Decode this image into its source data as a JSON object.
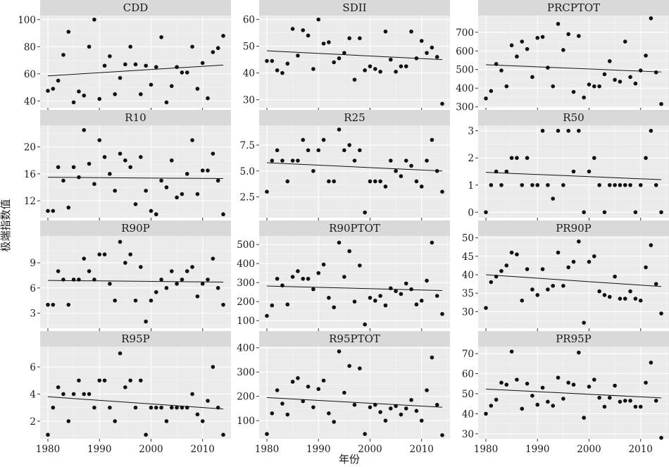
{
  "axis_labels": {
    "x": "年份",
    "y": "极端指数值"
  },
  "chart_data": [
    {
      "type": "scatter",
      "title": "CDD",
      "xlim": [
        1978.5,
        2015.5
      ],
      "ylim": [
        35,
        103
      ],
      "yticks": [
        40,
        60,
        80,
        100
      ],
      "xticks": [
        1980,
        1990,
        2000,
        2010
      ],
      "x": [
        1980,
        1981,
        1982,
        1983,
        1984,
        1985,
        1986,
        1987,
        1988,
        1989,
        1990,
        1991,
        1992,
        1993,
        1994,
        1995,
        1996,
        1997,
        1998,
        1999,
        2000,
        2001,
        2002,
        2003,
        2004,
        2005,
        2006,
        2007,
        2008,
        2009,
        2010,
        2011,
        2012,
        2013,
        2014
      ],
      "y": [
        47.5,
        49,
        55,
        74,
        91,
        39,
        47,
        44,
        80,
        100,
        41.5,
        66,
        73,
        45,
        57,
        67,
        80,
        67,
        45,
        66,
        52,
        65,
        87,
        39,
        51,
        65,
        61,
        61,
        80,
        49,
        68,
        42,
        76,
        79,
        88
      ],
      "trend": [
        58.5,
        66.5
      ]
    },
    {
      "type": "scatter",
      "title": "SDII",
      "xlim": [
        1978.5,
        2015.5
      ],
      "ylim": [
        27,
        61.5
      ],
      "yticks": [
        30,
        40,
        50,
        60
      ],
      "xticks": [
        1980,
        1990,
        2000,
        2010
      ],
      "x": [
        1980,
        1981,
        1982,
        1983,
        1984,
        1985,
        1986,
        1987,
        1988,
        1989,
        1990,
        1991,
        1992,
        1993,
        1994,
        1995,
        1996,
        1997,
        1998,
        1999,
        2000,
        2001,
        2002,
        2003,
        2004,
        2005,
        2006,
        2007,
        2008,
        2009,
        2010,
        2011,
        2012,
        2013,
        2014
      ],
      "y": [
        44.5,
        44.5,
        41,
        40,
        43.5,
        56.5,
        46.5,
        56,
        54,
        41.5,
        60,
        51,
        51.5,
        44,
        45.5,
        47.5,
        53,
        37.5,
        53,
        41,
        42.5,
        41.5,
        40.5,
        55.5,
        45,
        40.5,
        42.5,
        42.5,
        55.5,
        45.5,
        52,
        47.5,
        49.5,
        46,
        28.5
      ],
      "trend": [
        48.3,
        45.0
      ]
    },
    {
      "type": "scatter",
      "title": "PRCPTOT",
      "xlim": [
        1978.5,
        2015.5
      ],
      "ylim": [
        295,
        790
      ],
      "yticks": [
        300,
        400,
        500,
        600,
        700
      ],
      "xticks": [
        1980,
        1990,
        2000,
        2010
      ],
      "x": [
        1980,
        1981,
        1982,
        1983,
        1984,
        1985,
        1986,
        1987,
        1988,
        1989,
        1990,
        1991,
        1992,
        1993,
        1994,
        1995,
        1996,
        1997,
        1998,
        1999,
        2000,
        2001,
        2002,
        2003,
        2004,
        2005,
        2006,
        2007,
        2008,
        2009,
        2010,
        2011,
        2012,
        2013,
        2014
      ],
      "y": [
        345,
        385,
        530,
        495,
        410,
        630,
        570,
        650,
        610,
        460,
        670,
        675,
        510,
        410,
        745,
        605,
        690,
        380,
        680,
        350,
        420,
        410,
        410,
        475,
        545,
        445,
        435,
        650,
        460,
        425,
        495,
        575,
        775,
        485,
        315
      ],
      "trend": [
        526,
        487
      ]
    },
    {
      "type": "scatter",
      "title": "R10",
      "xlim": [
        1978.5,
        2015.5
      ],
      "ylim": [
        9.5,
        23.2
      ],
      "yticks": [
        12,
        16,
        20
      ],
      "xticks": [
        1980,
        1990,
        2000,
        2010
      ],
      "x": [
        1980,
        1981,
        1982,
        1983,
        1984,
        1985,
        1986,
        1987,
        1988,
        1989,
        1990,
        1991,
        1992,
        1993,
        1994,
        1995,
        1996,
        1997,
        1998,
        1999,
        2000,
        2001,
        2002,
        2003,
        2004,
        2005,
        2006,
        2007,
        2008,
        2009,
        2010,
        2011,
        2012,
        2013,
        2014
      ],
      "y": [
        10.5,
        10.5,
        17,
        15,
        11,
        17,
        15.5,
        22.5,
        17.5,
        14.5,
        21,
        18.5,
        16,
        13.5,
        19,
        18,
        17,
        11.5,
        18.5,
        13.5,
        10.5,
        10,
        15,
        14,
        18,
        12.5,
        13,
        16,
        21,
        13,
        16.5,
        16.5,
        19,
        15,
        10
      ],
      "trend": [
        15.5,
        15.3
      ]
    },
    {
      "type": "scatter",
      "title": "R25",
      "xlim": [
        1978.5,
        2015.5
      ],
      "ylim": [
        0.5,
        9.4
      ],
      "yticks": [
        2.5,
        5.0,
        7.5
      ],
      "ytickLabels": [
        "2.5",
        "5.0",
        "7.5"
      ],
      "xticks": [
        1980,
        1990,
        2000,
        2010
      ],
      "x": [
        1980,
        1981,
        1982,
        1983,
        1984,
        1985,
        1986,
        1987,
        1988,
        1989,
        1990,
        1991,
        1992,
        1993,
        1994,
        1995,
        1996,
        1997,
        1998,
        1999,
        2000,
        2001,
        2002,
        2003,
        2004,
        2005,
        2006,
        2007,
        2008,
        2009,
        2010,
        2011,
        2012,
        2013,
        2014
      ],
      "y": [
        3,
        6,
        7,
        6,
        4,
        6,
        6,
        8,
        7,
        5,
        7,
        8,
        4,
        4,
        9,
        7,
        7.5,
        6,
        7,
        1,
        4,
        4,
        4,
        3.5,
        6,
        5,
        4.5,
        6,
        5.5,
        4,
        3.5,
        6,
        8,
        5,
        3
      ],
      "trend": [
        5.8,
        5.0
      ]
    },
    {
      "type": "scatter",
      "title": "R50",
      "xlim": [
        1978.5,
        2015.5
      ],
      "ylim": [
        -0.2,
        3.2
      ],
      "yticks": [
        0,
        1,
        2,
        3
      ],
      "xticks": [
        1980,
        1990,
        2000,
        2010
      ],
      "x": [
        1980,
        1981,
        1982,
        1983,
        1984,
        1985,
        1986,
        1987,
        1988,
        1989,
        1990,
        1991,
        1992,
        1993,
        1994,
        1995,
        1996,
        1997,
        1998,
        1999,
        2000,
        2001,
        2002,
        2003,
        2004,
        2005,
        2006,
        2007,
        2008,
        2009,
        2010,
        2011,
        2012,
        2013,
        2014
      ],
      "y": [
        0,
        1,
        1.5,
        1,
        1.5,
        2,
        2,
        1,
        2,
        1,
        1,
        3,
        1,
        0.5,
        3,
        1,
        3,
        1.5,
        3,
        0,
        1.5,
        2,
        1,
        0,
        1,
        1,
        1,
        1,
        1,
        0,
        1,
        2,
        3,
        1,
        0
      ],
      "trend": [
        1.47,
        1.2
      ]
    },
    {
      "type": "scatter",
      "title": "R90P",
      "xlim": [
        1978.5,
        2015.5
      ],
      "ylim": [
        1.2,
        12.2
      ],
      "yticks": [
        3,
        6,
        9
      ],
      "xticks": [
        1980,
        1990,
        2000,
        2010
      ],
      "x": [
        1980,
        1981,
        1982,
        1983,
        1984,
        1985,
        1986,
        1987,
        1988,
        1989,
        1990,
        1991,
        1992,
        1993,
        1994,
        1995,
        1996,
        1997,
        1998,
        1999,
        2000,
        2001,
        2002,
        2003,
        2004,
        2005,
        2006,
        2007,
        2008,
        2009,
        2010,
        2011,
        2012,
        2013,
        2014
      ],
      "y": [
        4,
        4,
        8,
        7,
        4,
        7,
        7,
        9.5,
        8,
        7,
        10,
        10,
        6.5,
        4.5,
        11.5,
        9,
        10,
        4.5,
        8.5,
        2,
        4.5,
        5.5,
        7,
        6,
        8,
        6.5,
        7,
        8,
        8.5,
        5,
        6.5,
        7,
        9.5,
        6,
        4
      ],
      "trend": [
        6.9,
        6.7
      ]
    },
    {
      "type": "scatter",
      "title": "R90PTOT",
      "xlim": [
        1978.5,
        2015.5
      ],
      "ylim": [
        60,
        545
      ],
      "yticks": [
        100,
        200,
        300,
        400,
        500
      ],
      "xticks": [
        1980,
        1990,
        2000,
        2010
      ],
      "x": [
        1980,
        1981,
        1982,
        1983,
        1984,
        1985,
        1986,
        1987,
        1988,
        1989,
        1990,
        1991,
        1992,
        1993,
        1994,
        1995,
        1996,
        1997,
        1998,
        1999,
        2000,
        2001,
        2002,
        2003,
        2004,
        2005,
        2006,
        2007,
        2008,
        2009,
        2010,
        2011,
        2012,
        2013,
        2014
      ],
      "y": [
        125,
        180,
        320,
        285,
        185,
        330,
        360,
        320,
        320,
        265,
        350,
        395,
        220,
        170,
        510,
        330,
        465,
        200,
        390,
        80,
        220,
        205,
        230,
        180,
        270,
        255,
        240,
        295,
        265,
        185,
        205,
        310,
        510,
        230,
        135
      ],
      "trend": [
        282,
        258
      ]
    },
    {
      "type": "scatter",
      "title": "PR90P",
      "xlim": [
        1978.5,
        2015.5
      ],
      "ylim": [
        25.5,
        50.5
      ],
      "yticks": [
        30,
        35,
        40,
        45,
        50
      ],
      "xticks": [
        1980,
        1990,
        2000,
        2010
      ],
      "x": [
        1980,
        1981,
        1982,
        1983,
        1984,
        1985,
        1986,
        1987,
        1988,
        1989,
        1990,
        1991,
        1992,
        1993,
        1994,
        1995,
        1996,
        1997,
        1998,
        1999,
        2000,
        2001,
        2002,
        2003,
        2004,
        2005,
        2006,
        2007,
        2008,
        2009,
        2010,
        2011,
        2012,
        2013,
        2014
      ],
      "y": [
        31,
        38,
        39.5,
        41,
        42.5,
        46,
        45.5,
        33,
        41.5,
        36,
        34.5,
        41.5,
        36,
        37,
        46,
        37,
        42,
        43.5,
        49,
        27,
        43.5,
        45,
        35.5,
        34.5,
        34,
        39.5,
        33.5,
        33.5,
        35.5,
        33.5,
        33,
        42,
        48,
        37.5,
        29.5
      ],
      "trend": [
        40.0,
        36.8
      ]
    },
    {
      "type": "scatter",
      "title": "R95P",
      "xlim": [
        1978.5,
        2015.5
      ],
      "ylim": [
        0.7,
        7.5
      ],
      "yticks": [
        2,
        4,
        6
      ],
      "xticks": [
        1980,
        1990,
        2000,
        2010
      ],
      "x": [
        1980,
        1981,
        1982,
        1983,
        1984,
        1985,
        1986,
        1987,
        1988,
        1989,
        1990,
        1991,
        1992,
        1993,
        1994,
        1995,
        1996,
        1997,
        1998,
        1999,
        2000,
        2001,
        2002,
        2003,
        2004,
        2005,
        2006,
        2007,
        2008,
        2009,
        2010,
        2011,
        2012,
        2013,
        2014
      ],
      "y": [
        1,
        3,
        4.5,
        4,
        2,
        4,
        5,
        4,
        4,
        3,
        5,
        5,
        3,
        2,
        7,
        4.5,
        5,
        3,
        5,
        1,
        3,
        3,
        3,
        2,
        3,
        3,
        3,
        3,
        4,
        2.5,
        2,
        3.5,
        6,
        3,
        1
      ],
      "trend": [
        3.8,
        2.9
      ]
    },
    {
      "type": "scatter",
      "title": "R95PTOT",
      "xlim": [
        1978.5,
        2015.5
      ],
      "ylim": [
        25,
        405
      ],
      "yticks": [
        100,
        200,
        300,
        400
      ],
      "xticks": [
        1980,
        1990,
        2000,
        2010
      ],
      "x": [
        1980,
        1981,
        1982,
        1983,
        1984,
        1985,
        1986,
        1987,
        1988,
        1989,
        1990,
        1991,
        1992,
        1993,
        1994,
        1995,
        1996,
        1997,
        1998,
        1999,
        2000,
        2001,
        2002,
        2003,
        2004,
        2005,
        2006,
        2007,
        2008,
        2009,
        2010,
        2011,
        2012,
        2013,
        2014
      ],
      "y": [
        45,
        130,
        225,
        170,
        125,
        260,
        275,
        180,
        240,
        155,
        230,
        265,
        130,
        95,
        385,
        215,
        325,
        165,
        315,
        45,
        155,
        165,
        135,
        100,
        150,
        160,
        125,
        150,
        185,
        140,
        100,
        225,
        360,
        165,
        40
      ],
      "trend": [
        195,
        155
      ]
    },
    {
      "type": "scatter",
      "title": "PR95P",
      "xlim": [
        1978.5,
        2015.5
      ],
      "ylim": [
        27.5,
        73.5
      ],
      "yticks": [
        30,
        40,
        50,
        60,
        70
      ],
      "xticks": [
        1980,
        1990,
        2000,
        2010
      ],
      "x": [
        1980,
        1981,
        1982,
        1983,
        1984,
        1985,
        1986,
        1987,
        1988,
        1989,
        1990,
        1991,
        1992,
        1993,
        1994,
        1995,
        1996,
        1997,
        1998,
        1999,
        2000,
        2001,
        2002,
        2003,
        2004,
        2005,
        2006,
        2007,
        2008,
        2009,
        2010,
        2011,
        2012,
        2013,
        2014
      ],
      "y": [
        40,
        44,
        47,
        55.5,
        54.5,
        71,
        57,
        42.5,
        55,
        49,
        44.5,
        53,
        46,
        44,
        58,
        47.5,
        55.5,
        54.5,
        70.5,
        38,
        53.5,
        57,
        48,
        43.5,
        48,
        54,
        46,
        46.5,
        46.5,
        43.5,
        43.5,
        55.5,
        65.5,
        46.5,
        28
      ],
      "trend": [
        52.3,
        47.9
      ]
    }
  ]
}
